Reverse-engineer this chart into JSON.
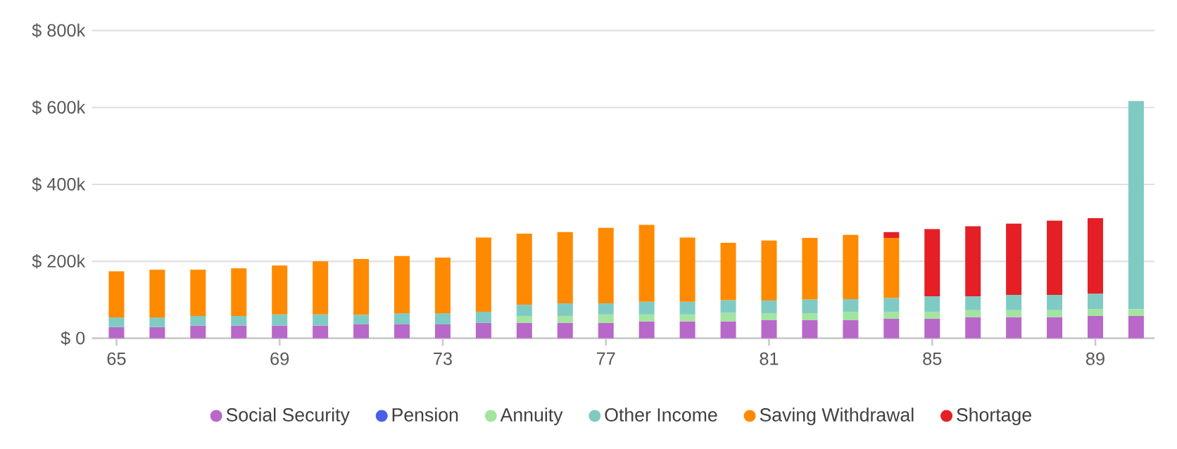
{
  "chart_data": {
    "type": "bar",
    "stacked": true,
    "categories": [
      "65",
      null,
      null,
      null,
      "69",
      null,
      null,
      null,
      "73",
      null,
      null,
      null,
      "77",
      null,
      null,
      null,
      "81",
      null,
      null,
      null,
      "85",
      null,
      null,
      null,
      "89",
      null
    ],
    "series": [
      {
        "name": "Social Security",
        "color": "#b868c8",
        "values": [
          29000,
          29000,
          33000,
          33000,
          33000,
          33000,
          36000,
          36000,
          36000,
          40000,
          40000,
          40000,
          40000,
          44000,
          44000,
          44000,
          47000,
          47000,
          47000,
          51000,
          51000,
          55000,
          55000,
          55000,
          58000,
          58000
        ]
      },
      {
        "name": "Pension",
        "color": "#4a5fe8",
        "values": [
          0,
          0,
          0,
          0,
          0,
          0,
          0,
          0,
          0,
          0,
          0,
          0,
          0,
          0,
          0,
          0,
          0,
          0,
          0,
          0,
          0,
          0,
          0,
          0,
          0,
          0
        ]
      },
      {
        "name": "Annuity",
        "color": "#a3e4a0",
        "values": [
          null,
          null,
          null,
          null,
          null,
          null,
          null,
          null,
          null,
          null,
          18000,
          18000,
          22000,
          18000,
          18000,
          22000,
          18000,
          18000,
          22000,
          18000,
          18000,
          18000,
          18000,
          18000,
          18000,
          18000
        ]
      },
      {
        "name": "Other Income",
        "color": "#7fcbc4",
        "values": [
          25000,
          25000,
          25000,
          25000,
          29000,
          29000,
          25000,
          29000,
          29000,
          29000,
          29000,
          33000,
          29000,
          33000,
          33000,
          33000,
          33000,
          36000,
          33000,
          36000,
          40000,
          36000,
          40000,
          40000,
          40000,
          541000
        ]
      },
      {
        "name": "Saving Withdrawal",
        "color": "#ff8a00",
        "values": [
          120000,
          124000,
          120000,
          124000,
          127000,
          138000,
          145000,
          149000,
          145000,
          193000,
          185000,
          185000,
          196000,
          200000,
          167000,
          149000,
          156000,
          160000,
          167000,
          156000,
          null,
          null,
          null,
          null,
          null,
          null
        ]
      },
      {
        "name": "Shortage",
        "color": "#e41f26",
        "values": [
          null,
          null,
          null,
          null,
          null,
          null,
          null,
          null,
          null,
          null,
          null,
          null,
          null,
          null,
          null,
          null,
          null,
          null,
          null,
          15000,
          175000,
          182000,
          185000,
          193000,
          196000,
          null
        ]
      }
    ],
    "ylim": [
      0,
      800000
    ],
    "yticks": [
      {
        "value": 0,
        "label": "$ 0"
      },
      {
        "value": 200000,
        "label": "$ 200k"
      },
      {
        "value": 400000,
        "label": "$ 400k"
      },
      {
        "value": 600000,
        "label": "$ 600k"
      },
      {
        "value": 800000,
        "label": "$ 800k"
      }
    ],
    "grid": "y",
    "legend": "bottom",
    "marker": "circle"
  }
}
